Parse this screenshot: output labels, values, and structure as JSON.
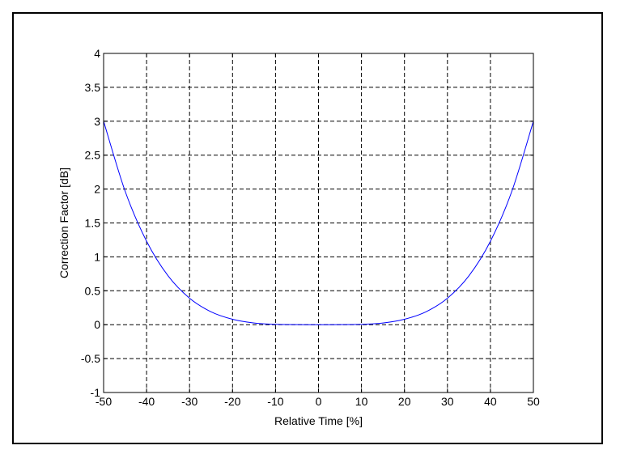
{
  "chart_data": {
    "type": "line",
    "title": "",
    "xlabel": "Relative Time [%]",
    "ylabel": "Correction Factor [dB]",
    "xlim": [
      -50,
      50
    ],
    "ylim": [
      -1,
      4
    ],
    "xticks": [
      -50,
      -40,
      -30,
      -20,
      -10,
      0,
      10,
      20,
      30,
      40,
      50
    ],
    "xtick_labels": [
      "-50",
      "-40",
      "-30",
      "-20",
      "-10",
      "0",
      "10",
      "20",
      "30",
      "40",
      "50"
    ],
    "yticks": [
      -1,
      -0.5,
      0,
      0.5,
      1,
      1.5,
      2,
      2.5,
      3,
      3.5,
      4
    ],
    "ytick_labels": [
      "-1",
      "-0.5",
      "0",
      "0.5",
      "1",
      "1.5",
      "2",
      "2.5",
      "3",
      "3.5",
      "4"
    ],
    "grid": true,
    "grid_style": "dashed",
    "line_color": "#0000ff",
    "series": [
      {
        "x": [
          -50,
          -45,
          -40,
          -35,
          -30,
          -25,
          -20,
          -15,
          -10,
          -5,
          0,
          5,
          10,
          15,
          20,
          25,
          30,
          35,
          40,
          45,
          50
        ],
        "y": [
          3.0,
          1.97,
          1.23,
          0.72,
          0.39,
          0.19,
          0.08,
          0.025,
          0.005,
          0.0003,
          0.0,
          0.0003,
          0.005,
          0.025,
          0.08,
          0.19,
          0.39,
          0.72,
          1.23,
          1.97,
          3.0
        ]
      }
    ]
  }
}
